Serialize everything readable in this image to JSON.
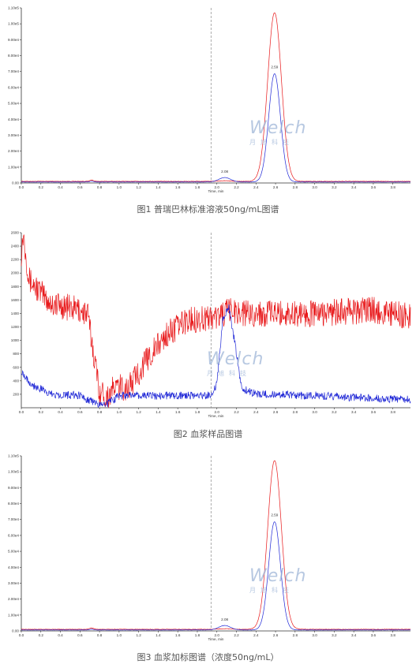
{
  "chart_data": [
    {
      "type": "line",
      "caption": "图1 普瑞巴林标准溶液50ng/mL图谱",
      "xlabel": "Time, min",
      "xlim": [
        0.0,
        3.98
      ],
      "ylim": [
        0,
        110000.0
      ],
      "x_ticks": [
        "0.0",
        "0.2",
        "0.4",
        "0.6",
        "0.8",
        "1.0",
        "1.2",
        "1.4",
        "1.6",
        "1.8",
        "2.0",
        "2.2",
        "2.4",
        "2.6",
        "2.8",
        "3.0",
        "3.2",
        "3.4",
        "3.6",
        "3.8"
      ],
      "y_ticks": [
        {
          "v": 0,
          "label": "0.00"
        },
        {
          "v": 10000.0,
          "label": "1.00e4"
        },
        {
          "v": 20000.0,
          "label": "2.00e4"
        },
        {
          "v": 30000.0,
          "label": "3.00e4"
        },
        {
          "v": 40000.0,
          "label": "4.00e4"
        },
        {
          "v": 50000.0,
          "label": "5.00e4"
        },
        {
          "v": 60000.0,
          "label": "6.00e4"
        },
        {
          "v": 70000.0,
          "label": "7.00e4"
        },
        {
          "v": 80000.0,
          "label": "8.00e4"
        },
        {
          "v": 90000.0,
          "label": "9.00e4"
        },
        {
          "v": 100000.0,
          "label": "1.00e5"
        },
        {
          "v": 110000.0,
          "label": "1.10e5"
        }
      ],
      "marker_x": 1.94,
      "annotations": [
        {
          "x": 2.08,
          "y": 5500,
          "text": "2.08"
        },
        {
          "x": 2.59,
          "y": 71000,
          "text": "2.59"
        }
      ],
      "series": [
        {
          "color": "#e8181a",
          "baseline": 1000,
          "noise": 150,
          "peaks": [
            {
              "x": 0.72,
              "h": 800,
              "w": 0.02
            },
            {
              "x": 2.08,
              "h": 400,
              "w": 0.06
            },
            {
              "x": 2.59,
              "h": 106000,
              "w": 0.07
            }
          ]
        },
        {
          "color": "#1f27d6",
          "baseline": 600,
          "noise": 80,
          "peaks": [
            {
              "x": 0.72,
              "h": 500,
              "w": 0.02
            },
            {
              "x": 2.08,
              "h": 2800,
              "w": 0.06
            },
            {
              "x": 2.59,
              "h": 68000,
              "w": 0.06
            }
          ]
        }
      ]
    },
    {
      "type": "line",
      "caption": "图2 血浆样品图谱",
      "xlabel": "Time, min",
      "xlim": [
        0.0,
        3.98
      ],
      "ylim": [
        0,
        2600
      ],
      "x_ticks": [
        "0.0",
        "0.2",
        "0.4",
        "0.6",
        "0.8",
        "1.0",
        "1.2",
        "1.4",
        "1.6",
        "1.8",
        "2.0",
        "2.2",
        "2.4",
        "2.6",
        "2.8",
        "3.0",
        "3.2",
        "3.4",
        "3.6",
        "3.8"
      ],
      "y_ticks": [
        {
          "v": 200,
          "label": "200"
        },
        {
          "v": 400,
          "label": "400"
        },
        {
          "v": 600,
          "label": "600"
        },
        {
          "v": 800,
          "label": "800"
        },
        {
          "v": 1000,
          "label": "1000"
        },
        {
          "v": 1200,
          "label": "1200"
        },
        {
          "v": 1400,
          "label": "1400"
        },
        {
          "v": 1600,
          "label": "1600"
        },
        {
          "v": 1800,
          "label": "1800"
        },
        {
          "v": 2000,
          "label": "2000"
        },
        {
          "v": 2200,
          "label": "2200"
        },
        {
          "v": 2400,
          "label": "2400"
        },
        {
          "v": 2600,
          "label": "2600"
        }
      ],
      "marker_x": 1.94,
      "annotations": [],
      "series": [
        {
          "color": "#e8181a",
          "noise": 200,
          "profile": [
            [
              0,
              2300
            ],
            [
              0.02,
              2600
            ],
            [
              0.08,
              1900
            ],
            [
              0.3,
              1550
            ],
            [
              0.6,
              1450
            ],
            [
              0.68,
              1380
            ],
            [
              0.74,
              800
            ],
            [
              0.8,
              250
            ],
            [
              0.88,
              150
            ],
            [
              0.95,
              300
            ],
            [
              1.1,
              300
            ],
            [
              1.3,
              750
            ],
            [
              1.5,
              1100
            ],
            [
              1.7,
              1300
            ],
            [
              2.0,
              1350
            ],
            [
              2.15,
              1450
            ],
            [
              2.3,
              1400
            ],
            [
              3.0,
              1400
            ],
            [
              3.6,
              1450
            ],
            [
              3.98,
              1350
            ]
          ]
        },
        {
          "color": "#1f27d6",
          "noise": 60,
          "profile": [
            [
              0,
              550
            ],
            [
              0.1,
              350
            ],
            [
              0.3,
              200
            ],
            [
              0.6,
              180
            ],
            [
              0.72,
              100
            ],
            [
              0.8,
              30
            ],
            [
              0.88,
              60
            ],
            [
              1.0,
              180
            ],
            [
              1.6,
              180
            ],
            [
              1.95,
              180
            ],
            [
              2.0,
              350
            ],
            [
              2.06,
              1300
            ],
            [
              2.12,
              1500
            ],
            [
              2.18,
              1000
            ],
            [
              2.25,
              300
            ],
            [
              2.4,
              200
            ],
            [
              3.0,
              180
            ],
            [
              3.98,
              120
            ]
          ]
        }
      ]
    },
    {
      "type": "line",
      "caption": "图3 血浆加标图谱（浓度50ng/mL）",
      "xlabel": "Time, min",
      "xlim": [
        0.0,
        3.98
      ],
      "ylim": [
        0,
        110000.0
      ],
      "x_ticks": [
        "0.0",
        "0.2",
        "0.4",
        "0.6",
        "0.8",
        "1.0",
        "1.2",
        "1.4",
        "1.6",
        "1.8",
        "2.0",
        "2.2",
        "2.4",
        "2.6",
        "2.8",
        "3.0",
        "3.2",
        "3.4",
        "3.6",
        "3.8"
      ],
      "y_ticks": [
        {
          "v": 0,
          "label": "0.00"
        },
        {
          "v": 10000.0,
          "label": "1.00e4"
        },
        {
          "v": 20000.0,
          "label": "2.00e4"
        },
        {
          "v": 30000.0,
          "label": "3.00e4"
        },
        {
          "v": 40000.0,
          "label": "4.00e4"
        },
        {
          "v": 50000.0,
          "label": "5.00e4"
        },
        {
          "v": 60000.0,
          "label": "6.00e4"
        },
        {
          "v": 70000.0,
          "label": "7.00e4"
        },
        {
          "v": 80000.0,
          "label": "8.00e4"
        },
        {
          "v": 90000.0,
          "label": "9.00e4"
        },
        {
          "v": 100000.0,
          "label": "1.00e5"
        },
        {
          "v": 110000.0,
          "label": "1.10e5"
        }
      ],
      "marker_x": 1.94,
      "annotations": [
        {
          "x": 2.08,
          "y": 5500,
          "text": "2.08"
        },
        {
          "x": 2.59,
          "y": 71000,
          "text": "2.59"
        }
      ],
      "series": [
        {
          "color": "#e8181a",
          "baseline": 1000,
          "noise": 150,
          "peaks": [
            {
              "x": 0.72,
              "h": 800,
              "w": 0.02
            },
            {
              "x": 2.08,
              "h": 400,
              "w": 0.06
            },
            {
              "x": 2.59,
              "h": 106000,
              "w": 0.07
            }
          ]
        },
        {
          "color": "#1f27d6",
          "baseline": 600,
          "noise": 80,
          "peaks": [
            {
              "x": 0.72,
              "h": 500,
              "w": 0.02
            },
            {
              "x": 2.08,
              "h": 2800,
              "w": 0.06
            },
            {
              "x": 2.59,
              "h": 68000,
              "w": 0.06
            }
          ]
        }
      ]
    }
  ],
  "watermark": {
    "main": "Welch",
    "sub": "月旭科技"
  },
  "captions": {
    "fig1": "图1 普瑞巴林标准溶液50ng/mL图谱",
    "fig2": "图2 血浆样品图谱",
    "fig3": "图3 血浆加标图谱（浓度50ng/mL）"
  }
}
